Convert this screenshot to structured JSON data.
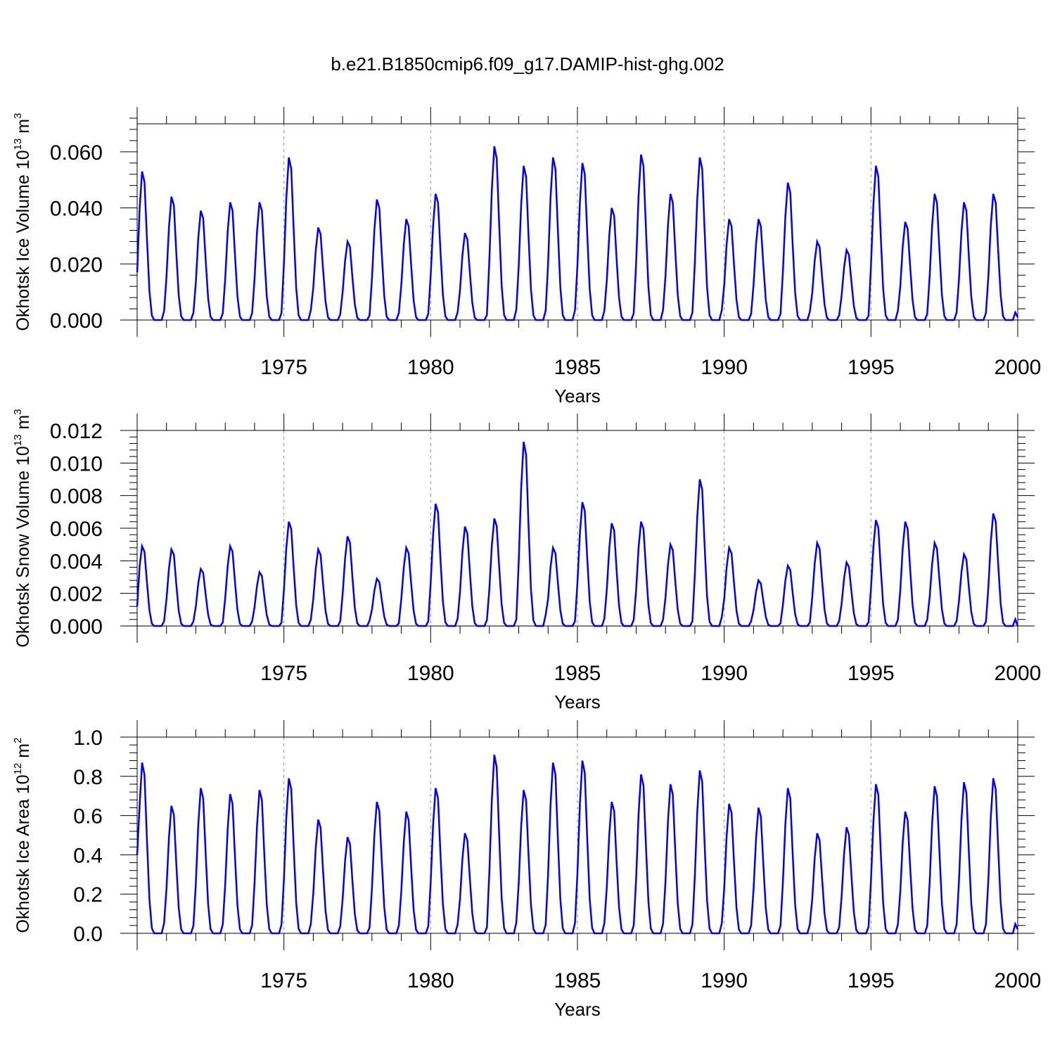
{
  "title": "b.e21.B1850cmip6.f09_g17.DAMIP-hist-ghg.002",
  "chart_data": [
    {
      "type": "line",
      "ylabel_main": "Okhotsk Ice Volume 10",
      "ylabel_exp": "13",
      "ylabel_unit": " m",
      "ylabel_unit_exp": "3",
      "xlabel": "Years",
      "xlim": [
        1970,
        2000
      ],
      "ylim": [
        0,
        0.07
      ],
      "xticks": [
        "1975",
        "1980",
        "1985",
        "1990",
        "1995",
        "2000"
      ],
      "yticks": [
        "0.000",
        "0.020",
        "0.040",
        "0.060"
      ],
      "ytick_values": [
        0,
        0.02,
        0.04,
        0.06
      ],
      "line_color": "#0000ff",
      "grid": "dashed vertical lines at major x ticks",
      "peaks": [
        [
          1970.2,
          0.053
        ],
        [
          1971.2,
          0.044
        ],
        [
          1972.2,
          0.039
        ],
        [
          1973.2,
          0.042
        ],
        [
          1974.2,
          0.042
        ],
        [
          1975.2,
          0.058
        ],
        [
          1976.2,
          0.033
        ],
        [
          1977.2,
          0.028
        ],
        [
          1978.2,
          0.043
        ],
        [
          1979.2,
          0.036
        ],
        [
          1980.2,
          0.045
        ],
        [
          1981.2,
          0.031
        ],
        [
          1982.2,
          0.062
        ],
        [
          1983.2,
          0.055
        ],
        [
          1984.2,
          0.058
        ],
        [
          1985.2,
          0.056
        ],
        [
          1986.2,
          0.04
        ],
        [
          1987.2,
          0.059
        ],
        [
          1988.2,
          0.045
        ],
        [
          1989.2,
          0.058
        ],
        [
          1990.2,
          0.036
        ],
        [
          1991.2,
          0.036
        ],
        [
          1992.2,
          0.049
        ],
        [
          1993.2,
          0.028
        ],
        [
          1994.2,
          0.025
        ],
        [
          1995.2,
          0.055
        ],
        [
          1996.2,
          0.035
        ],
        [
          1997.2,
          0.045
        ],
        [
          1998.2,
          0.042
        ],
        [
          1999.2,
          0.045
        ]
      ],
      "start_value": 0.017,
      "end_value": 0.001
    },
    {
      "type": "line",
      "ylabel_main": "Okhotsk Snow Volume 10",
      "ylabel_exp": "13",
      "ylabel_unit": " m",
      "ylabel_unit_exp": "3",
      "xlabel": "Years",
      "xlim": [
        1970,
        2000
      ],
      "ylim": [
        0,
        0.012
      ],
      "xticks": [
        "1975",
        "1980",
        "1985",
        "1990",
        "1995",
        "2000"
      ],
      "yticks": [
        "0.000",
        "0.002",
        "0.004",
        "0.006",
        "0.008",
        "0.010",
        "0.012"
      ],
      "ytick_values": [
        0,
        0.002,
        0.004,
        0.006,
        0.008,
        0.01,
        0.012
      ],
      "line_color": "#0000ff",
      "grid": "dashed vertical lines at major x ticks",
      "peaks": [
        [
          1970.2,
          0.0049
        ],
        [
          1971.2,
          0.0047
        ],
        [
          1972.2,
          0.0035
        ],
        [
          1973.2,
          0.0049
        ],
        [
          1974.2,
          0.0033
        ],
        [
          1975.2,
          0.0064
        ],
        [
          1976.2,
          0.0047
        ],
        [
          1977.2,
          0.0055
        ],
        [
          1978.2,
          0.0029
        ],
        [
          1979.2,
          0.0048
        ],
        [
          1980.2,
          0.0075
        ],
        [
          1981.2,
          0.0061
        ],
        [
          1982.2,
          0.0066
        ],
        [
          1983.2,
          0.0113
        ],
        [
          1984.2,
          0.0048
        ],
        [
          1985.2,
          0.0076
        ],
        [
          1986.2,
          0.0063
        ],
        [
          1987.2,
          0.0064
        ],
        [
          1988.2,
          0.005
        ],
        [
          1989.2,
          0.009
        ],
        [
          1990.2,
          0.0048
        ],
        [
          1991.2,
          0.0028
        ],
        [
          1992.2,
          0.0037
        ],
        [
          1993.2,
          0.0051
        ],
        [
          1994.2,
          0.0039
        ],
        [
          1995.2,
          0.0065
        ],
        [
          1996.2,
          0.0064
        ],
        [
          1997.2,
          0.0051
        ],
        [
          1998.2,
          0.0044
        ],
        [
          1999.2,
          0.0069
        ]
      ],
      "start_value": 0.0012,
      "end_value": 0.0
    },
    {
      "type": "line",
      "ylabel_main": "Okhotsk Ice Area 10",
      "ylabel_exp": "12",
      "ylabel_unit": " m",
      "ylabel_unit_exp": "2",
      "xlabel": "Years",
      "xlim": [
        1970,
        2000
      ],
      "ylim": [
        0,
        1.0
      ],
      "xticks": [
        "1975",
        "1980",
        "1985",
        "1990",
        "1995",
        "2000"
      ],
      "yticks": [
        "0.0",
        "0.2",
        "0.4",
        "0.6",
        "0.8",
        "1.0"
      ],
      "ytick_values": [
        0,
        0.2,
        0.4,
        0.6,
        0.8,
        1.0
      ],
      "line_color": "#0000ff",
      "grid": "dashed vertical lines at major x ticks",
      "peaks": [
        [
          1970.2,
          0.87
        ],
        [
          1971.2,
          0.65
        ],
        [
          1972.2,
          0.74
        ],
        [
          1973.2,
          0.71
        ],
        [
          1974.2,
          0.73
        ],
        [
          1975.2,
          0.79
        ],
        [
          1976.2,
          0.58
        ],
        [
          1977.2,
          0.49
        ],
        [
          1978.2,
          0.67
        ],
        [
          1979.2,
          0.62
        ],
        [
          1980.2,
          0.74
        ],
        [
          1981.2,
          0.51
        ],
        [
          1982.2,
          0.91
        ],
        [
          1983.2,
          0.73
        ],
        [
          1984.2,
          0.87
        ],
        [
          1985.2,
          0.88
        ],
        [
          1986.2,
          0.67
        ],
        [
          1987.2,
          0.81
        ],
        [
          1988.2,
          0.76
        ],
        [
          1989.2,
          0.83
        ],
        [
          1990.2,
          0.66
        ],
        [
          1991.2,
          0.64
        ],
        [
          1992.2,
          0.74
        ],
        [
          1993.2,
          0.51
        ],
        [
          1994.2,
          0.54
        ],
        [
          1995.2,
          0.76
        ],
        [
          1996.2,
          0.62
        ],
        [
          1997.2,
          0.75
        ],
        [
          1998.2,
          0.77
        ],
        [
          1999.2,
          0.79
        ]
      ],
      "start_value": 0.4,
      "end_value": 0.02
    }
  ]
}
